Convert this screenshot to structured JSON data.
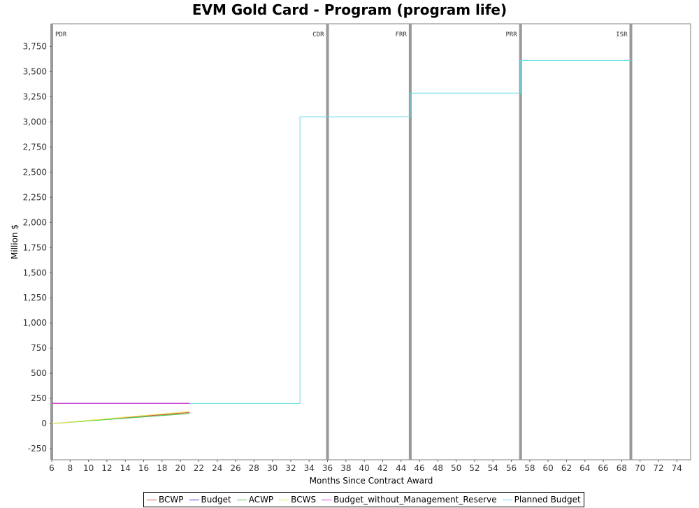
{
  "chart_data": {
    "type": "line",
    "title": "EVM Gold Card - Program (program life)",
    "xlabel": "Months Since Contract Award",
    "ylabel": "Million $",
    "xlim": [
      6,
      75.5
    ],
    "ylim": [
      -360,
      3975
    ],
    "x_ticks": [
      6,
      8,
      10,
      12,
      14,
      16,
      18,
      20,
      22,
      24,
      26,
      28,
      30,
      32,
      34,
      36,
      38,
      40,
      42,
      44,
      46,
      48,
      50,
      52,
      54,
      56,
      58,
      60,
      62,
      64,
      66,
      68,
      70,
      72,
      74
    ],
    "y_ticks": [
      -250,
      0,
      250,
      500,
      750,
      1000,
      1250,
      1500,
      1750,
      2000,
      2250,
      2500,
      2750,
      3000,
      3250,
      3500,
      3750
    ],
    "y_tick_labels": [
      "-250",
      "0",
      "250",
      "500",
      "750",
      "1,000",
      "1,250",
      "1,500",
      "1,750",
      "2,000",
      "2,250",
      "2,500",
      "2,750",
      "3,000",
      "3,250",
      "3,500",
      "3,750"
    ],
    "grid": false,
    "legend_position": "bottom",
    "milestones": [
      {
        "label": "PDR",
        "x": 6
      },
      {
        "label": "CDR",
        "x": 36
      },
      {
        "label": "FRR",
        "x": 45
      },
      {
        "label": "PRR",
        "x": 57
      },
      {
        "label": "ISR",
        "x": 69
      }
    ],
    "series": [
      {
        "name": "BCWP",
        "color": "#d9534f",
        "step": false,
        "x": [
          6,
          21
        ],
        "y": [
          0,
          110
        ]
      },
      {
        "name": "Budget",
        "color": "#5b2be0",
        "step": false,
        "x": [
          6,
          21
        ],
        "y": [
          200,
          200
        ]
      },
      {
        "name": "ACWP",
        "color": "#55cc55",
        "step": false,
        "x": [
          6,
          21
        ],
        "y": [
          0,
          100
        ]
      },
      {
        "name": "BCWS",
        "color": "#e8e85a",
        "step": false,
        "x": [
          6,
          21
        ],
        "y": [
          0,
          120
        ]
      },
      {
        "name": "Budget_without_Management_Reserve",
        "color": "#cc44cc",
        "step": false,
        "x": [
          6,
          21
        ],
        "y": [
          200,
          200
        ]
      },
      {
        "name": "Planned Budget",
        "color": "#66dde6",
        "step": true,
        "x": [
          21,
          33,
          33,
          45,
          45,
          57,
          57,
          69
        ],
        "y": [
          200,
          200,
          3050,
          3050,
          3285,
          3285,
          3610,
          3610
        ]
      }
    ]
  }
}
